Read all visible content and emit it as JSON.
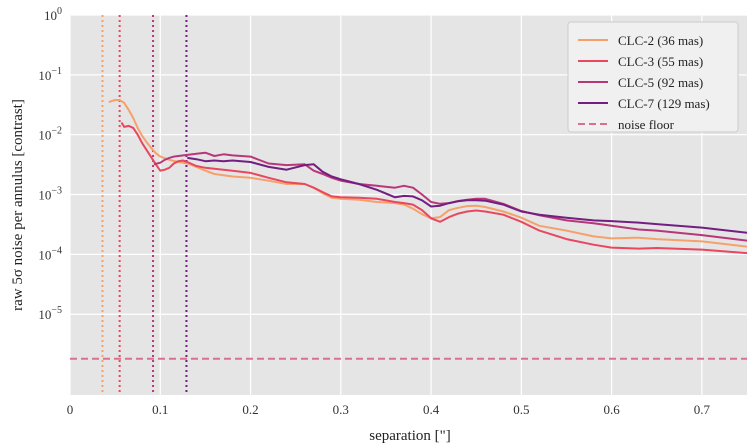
{
  "chart_data": {
    "type": "line",
    "xlabel": "separation [\"]",
    "ylabel": "raw 5σ noise per annulus [contrast]",
    "xlim": [
      0,
      0.75
    ],
    "ylim_log10": [
      -6.35,
      0
    ],
    "yscale": "log",
    "grid": true,
    "legend_position": "top-right",
    "x_ticks": [
      {
        "value": 0,
        "label": "0"
      },
      {
        "value": 0.1,
        "label": "0.1"
      },
      {
        "value": 0.2,
        "label": "0.2"
      },
      {
        "value": 0.3,
        "label": "0.3"
      },
      {
        "value": 0.4,
        "label": "0.4"
      },
      {
        "value": 0.5,
        "label": "0.5"
      },
      {
        "value": 0.6,
        "label": "0.6"
      },
      {
        "value": 0.7,
        "label": "0.7"
      }
    ],
    "y_ticks": [
      {
        "exp": 0,
        "base": "10",
        "sup": "0"
      },
      {
        "exp": -1,
        "base": "10",
        "sup": "−1"
      },
      {
        "exp": -2,
        "base": "10",
        "sup": "−2"
      },
      {
        "exp": -3,
        "base": "10",
        "sup": "−3"
      },
      {
        "exp": -4,
        "base": "10",
        "sup": "−4"
      },
      {
        "exp": -5,
        "base": "10",
        "sup": "−5"
      }
    ],
    "series": [
      {
        "name": "CLC-2 (36 mas)",
        "color": "#f6a16b",
        "style": "solid",
        "x": [
          0.043,
          0.05,
          0.055,
          0.06,
          0.065,
          0.07,
          0.075,
          0.08,
          0.085,
          0.09,
          0.095,
          0.1,
          0.11,
          0.12,
          0.13,
          0.14,
          0.15,
          0.16,
          0.18,
          0.2,
          0.22,
          0.24,
          0.25,
          0.26,
          0.27,
          0.28,
          0.29,
          0.3,
          0.32,
          0.34,
          0.36,
          0.37,
          0.38,
          0.39,
          0.4,
          0.41,
          0.42,
          0.43,
          0.44,
          0.45,
          0.46,
          0.48,
          0.5,
          0.52,
          0.55,
          0.58,
          0.6,
          0.63,
          0.65,
          0.7,
          0.75
        ],
        "y": [
          0.035,
          0.038,
          0.038,
          0.034,
          0.026,
          0.019,
          0.013,
          0.0095,
          0.0075,
          0.006,
          0.0049,
          0.0043,
          0.0038,
          0.0035,
          0.0033,
          0.0029,
          0.0025,
          0.0022,
          0.002,
          0.0019,
          0.0017,
          0.0015,
          0.0015,
          0.0015,
          0.0013,
          0.00105,
          0.00088,
          0.00085,
          0.00082,
          0.00075,
          0.00072,
          0.00068,
          0.00058,
          0.00047,
          0.0004,
          0.00042,
          0.00055,
          0.0006,
          0.00064,
          0.00065,
          0.00062,
          0.00052,
          0.00041,
          0.0003,
          0.00025,
          0.0002,
          0.000185,
          0.00019,
          0.00018,
          0.000165,
          0.000135
        ]
      },
      {
        "name": "CLC-3 (55 mas)",
        "color": "#e8475f",
        "style": "solid",
        "x": [
          0.057,
          0.06,
          0.065,
          0.07,
          0.075,
          0.08,
          0.085,
          0.09,
          0.095,
          0.1,
          0.105,
          0.11,
          0.115,
          0.12,
          0.125,
          0.13,
          0.14,
          0.15,
          0.16,
          0.18,
          0.2,
          0.22,
          0.24,
          0.26,
          0.27,
          0.28,
          0.29,
          0.3,
          0.32,
          0.34,
          0.36,
          0.37,
          0.38,
          0.39,
          0.4,
          0.41,
          0.42,
          0.43,
          0.44,
          0.45,
          0.46,
          0.48,
          0.5,
          0.52,
          0.55,
          0.58,
          0.6,
          0.63,
          0.65,
          0.7,
          0.75
        ],
        "y": [
          0.016,
          0.0135,
          0.014,
          0.013,
          0.01,
          0.0072,
          0.0055,
          0.0042,
          0.0032,
          0.0025,
          0.0026,
          0.0028,
          0.0033,
          0.0036,
          0.0037,
          0.0035,
          0.003,
          0.0028,
          0.0027,
          0.0025,
          0.0023,
          0.0019,
          0.0016,
          0.0015,
          0.0013,
          0.0011,
          0.00093,
          0.0009,
          0.00088,
          0.00085,
          0.00075,
          0.00072,
          0.00068,
          0.00055,
          0.0004,
          0.00035,
          0.00042,
          0.00048,
          0.00052,
          0.00054,
          0.00052,
          0.00046,
          0.00035,
          0.00025,
          0.00018,
          0.000145,
          0.00013,
          0.000125,
          0.000128,
          0.00012,
          0.000105
        ]
      },
      {
        "name": "CLC-5 (92 mas)",
        "color": "#b73779",
        "style": "solid",
        "x": [
          0.093,
          0.1,
          0.105,
          0.11,
          0.115,
          0.12,
          0.13,
          0.14,
          0.15,
          0.16,
          0.17,
          0.18,
          0.2,
          0.22,
          0.24,
          0.26,
          0.27,
          0.28,
          0.29,
          0.3,
          0.32,
          0.34,
          0.36,
          0.37,
          0.38,
          0.39,
          0.4,
          0.41,
          0.42,
          0.43,
          0.44,
          0.45,
          0.46,
          0.48,
          0.5,
          0.52,
          0.55,
          0.58,
          0.6,
          0.63,
          0.65,
          0.7,
          0.75
        ],
        "y": [
          0.0032,
          0.0034,
          0.0038,
          0.0041,
          0.0043,
          0.0044,
          0.0046,
          0.0048,
          0.005,
          0.0044,
          0.0047,
          0.0045,
          0.0043,
          0.0033,
          0.0031,
          0.0032,
          0.0025,
          0.0022,
          0.0019,
          0.0017,
          0.0015,
          0.0014,
          0.0013,
          0.0014,
          0.0013,
          0.001,
          0.00075,
          0.0007,
          0.00072,
          0.00078,
          0.00082,
          0.00085,
          0.00085,
          0.0007,
          0.00053,
          0.00045,
          0.00037,
          0.00033,
          0.0003,
          0.00026,
          0.00025,
          0.00021,
          0.00017
        ]
      },
      {
        "name": "CLC-7 (129 mas)",
        "color": "#721f81",
        "style": "solid",
        "x": [
          0.13,
          0.14,
          0.15,
          0.16,
          0.17,
          0.18,
          0.19,
          0.2,
          0.22,
          0.24,
          0.26,
          0.27,
          0.28,
          0.29,
          0.3,
          0.32,
          0.34,
          0.36,
          0.37,
          0.38,
          0.39,
          0.4,
          0.41,
          0.42,
          0.43,
          0.44,
          0.45,
          0.46,
          0.48,
          0.5,
          0.52,
          0.55,
          0.58,
          0.6,
          0.63,
          0.65,
          0.7,
          0.75
        ],
        "y": [
          0.0041,
          0.0039,
          0.0036,
          0.0037,
          0.0036,
          0.0037,
          0.0036,
          0.0035,
          0.0029,
          0.0026,
          0.0031,
          0.0032,
          0.0024,
          0.002,
          0.0018,
          0.0015,
          0.0012,
          0.0009,
          0.00095,
          0.00093,
          0.0008,
          0.00063,
          0.00065,
          0.00072,
          0.00077,
          0.0008,
          0.0008,
          0.00079,
          0.00068,
          0.00052,
          0.00046,
          0.00041,
          0.00037,
          0.00036,
          0.00034,
          0.00032,
          0.00028,
          0.00023
        ]
      },
      {
        "name": "noise floor",
        "color": "#d9718e",
        "style": "dashed",
        "constant_y": 1.8e-06
      }
    ],
    "vertical_markers": [
      {
        "x": 0.036,
        "color": "#f6a16b"
      },
      {
        "x": 0.055,
        "color": "#e8475f"
      },
      {
        "x": 0.092,
        "color": "#b73779"
      },
      {
        "x": 0.129,
        "color": "#721f81"
      }
    ]
  }
}
